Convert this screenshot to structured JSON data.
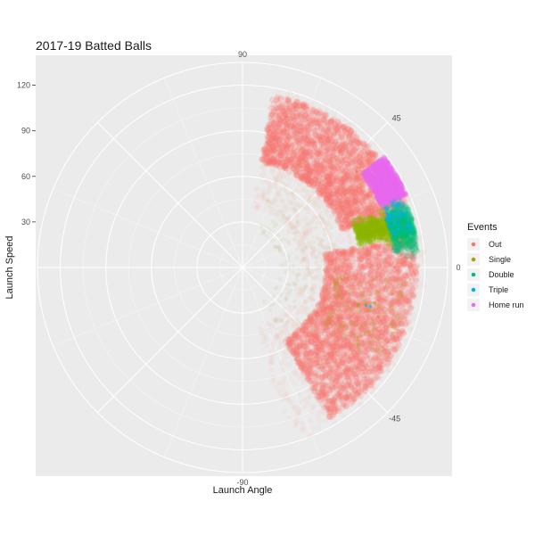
{
  "chart_data": {
    "type": "scatter",
    "coord": "polar",
    "title": "2017-19 Batted Balls",
    "xlabel": "Launch Angle",
    "ylabel": "Launch Speed",
    "angle_range": [
      -90,
      90
    ],
    "angle_ticks": [
      {
        "value": 90,
        "label": "90"
      },
      {
        "value": 45,
        "label": "45"
      },
      {
        "value": 0,
        "label": "0"
      },
      {
        "value": -45,
        "label": "-45"
      },
      {
        "value": -90,
        "label": "-90"
      }
    ],
    "radius_range": [
      0,
      135
    ],
    "radius_ticks": [
      {
        "value": 30,
        "label": "30"
      },
      {
        "value": 60,
        "label": "60"
      },
      {
        "value": 90,
        "label": "90"
      },
      {
        "value": 120,
        "label": "120"
      }
    ],
    "grid": true,
    "legend": {
      "title": "Events",
      "placement": "right",
      "items": [
        {
          "label": "Out",
          "color": "#F8766D"
        },
        {
          "label": "Single",
          "color": "#A3A500"
        },
        {
          "label": "Double",
          "color": "#00BF7D"
        },
        {
          "label": "Triple",
          "color": "#00B0F6"
        },
        {
          "label": "Home run",
          "color": "#E76BF3"
        }
      ]
    },
    "series": [
      {
        "name": "Out",
        "description_of_density": "dense bulk across -60..75 deg, speeds roughly 55-115 mph",
        "points": [
          {
            "angle": 70,
            "speed": 85
          },
          {
            "angle": 60,
            "speed": 95
          },
          {
            "angle": 50,
            "speed": 100
          },
          {
            "angle": 40,
            "speed": 98
          },
          {
            "angle": 30,
            "speed": 95
          },
          {
            "angle": 20,
            "speed": 100
          },
          {
            "angle": 10,
            "speed": 105
          },
          {
            "angle": 0,
            "speed": 100
          },
          {
            "angle": -10,
            "speed": 100
          },
          {
            "angle": -20,
            "speed": 95
          },
          {
            "angle": -30,
            "speed": 90
          },
          {
            "angle": -45,
            "speed": 80
          },
          {
            "angle": -60,
            "speed": 70
          }
        ]
      },
      {
        "name": "Single",
        "points": [
          {
            "angle": 15,
            "speed": 90
          },
          {
            "angle": 12,
            "speed": 100
          },
          {
            "angle": 18,
            "speed": 95
          },
          {
            "angle": -18,
            "speed": 80
          },
          {
            "angle": -15,
            "speed": 90
          }
        ]
      },
      {
        "name": "Double",
        "points": [
          {
            "angle": 15,
            "speed": 105
          },
          {
            "angle": 20,
            "speed": 108
          },
          {
            "angle": 12,
            "speed": 110
          },
          {
            "angle": -17,
            "speed": 85
          }
        ]
      },
      {
        "name": "Triple",
        "points": [
          {
            "angle": 22,
            "speed": 103
          },
          {
            "angle": -17,
            "speed": 88
          }
        ]
      },
      {
        "name": "Home run",
        "points": [
          {
            "angle": 30,
            "speed": 108
          },
          {
            "angle": 28,
            "speed": 112
          },
          {
            "angle": 35,
            "speed": 106
          },
          {
            "angle": 25,
            "speed": 115
          }
        ]
      }
    ]
  }
}
